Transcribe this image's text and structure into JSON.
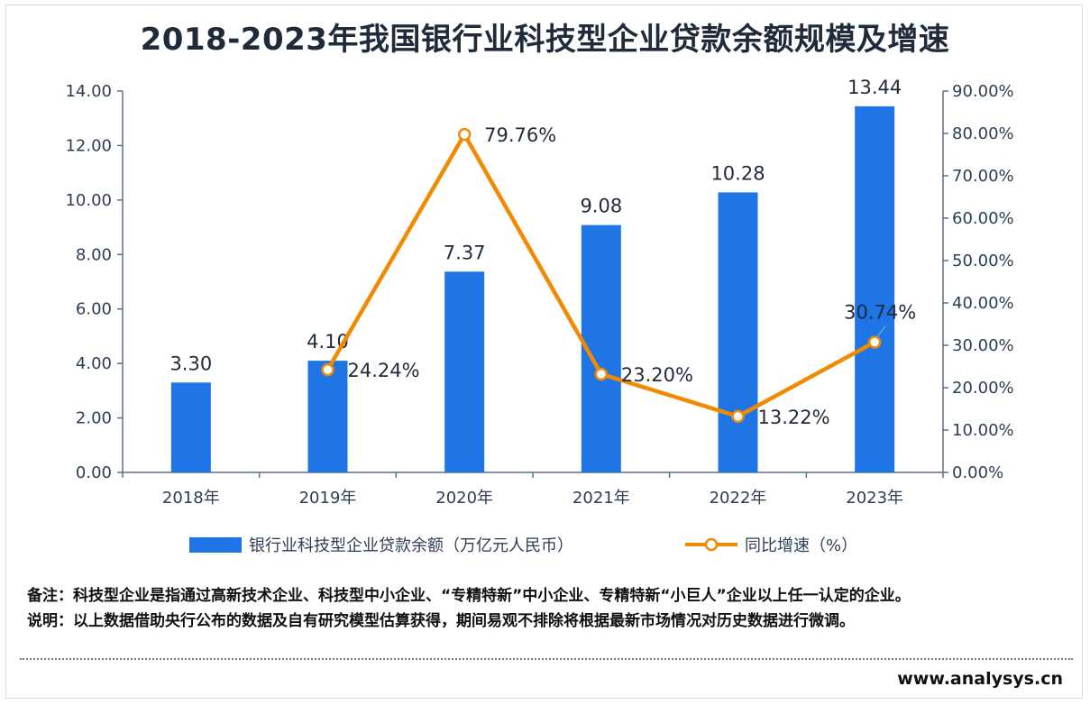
{
  "title": "2018-2023年我国银行业科技型企业贷款余额规模及增速",
  "colors": {
    "bar": "#1f74e6",
    "line": "#f18a00",
    "axis": "#5d6f84",
    "text": "#1f2a3a"
  },
  "chart_data": {
    "type": "bar",
    "categories": [
      "2018年",
      "2019年",
      "2020年",
      "2021年",
      "2022年",
      "2023年"
    ],
    "series": [
      {
        "name": "银行业科技型企业贷款余额（万亿元人民币）",
        "type": "bar",
        "axis": "left",
        "values": [
          3.3,
          4.1,
          7.37,
          9.08,
          10.28,
          13.44
        ],
        "labels": [
          "3.30",
          "4.10",
          "7.37",
          "9.08",
          "10.28",
          "13.44"
        ]
      },
      {
        "name": "同比增速（%）",
        "type": "line",
        "axis": "right",
        "x": [
          "2019年",
          "2020年",
          "2021年",
          "2022年",
          "2023年"
        ],
        "values": [
          24.24,
          79.76,
          23.2,
          13.22,
          30.74
        ],
        "labels": [
          "24.24%",
          "79.76%",
          "23.20%",
          "13.22%",
          "30.74%"
        ]
      }
    ],
    "y_left": {
      "ylim": [
        0,
        14
      ],
      "ticks": [
        "0.00",
        "2.00",
        "4.00",
        "6.00",
        "8.00",
        "10.00",
        "12.00",
        "14.00"
      ]
    },
    "y_right": {
      "ylim": [
        0,
        90
      ],
      "ticks": [
        "0.00%",
        "10.00%",
        "20.00%",
        "30.00%",
        "40.00%",
        "50.00%",
        "60.00%",
        "70.00%",
        "80.00%",
        "90.00%"
      ]
    },
    "grid": false,
    "legend_position": "bottom"
  },
  "notes": {
    "note1": "备注：科技型企业是指通过高新技术企业、科技型中小企业、“专精特新”中小企业、专精特新“小巨人”企业以上任一认定的企业。",
    "note2": "说明：以上数据借助央行公布的数据及自有研究模型估算获得，期间易观不排除将根据最新市场情况对历史数据进行微调。"
  },
  "site": "www.analysys.cn"
}
